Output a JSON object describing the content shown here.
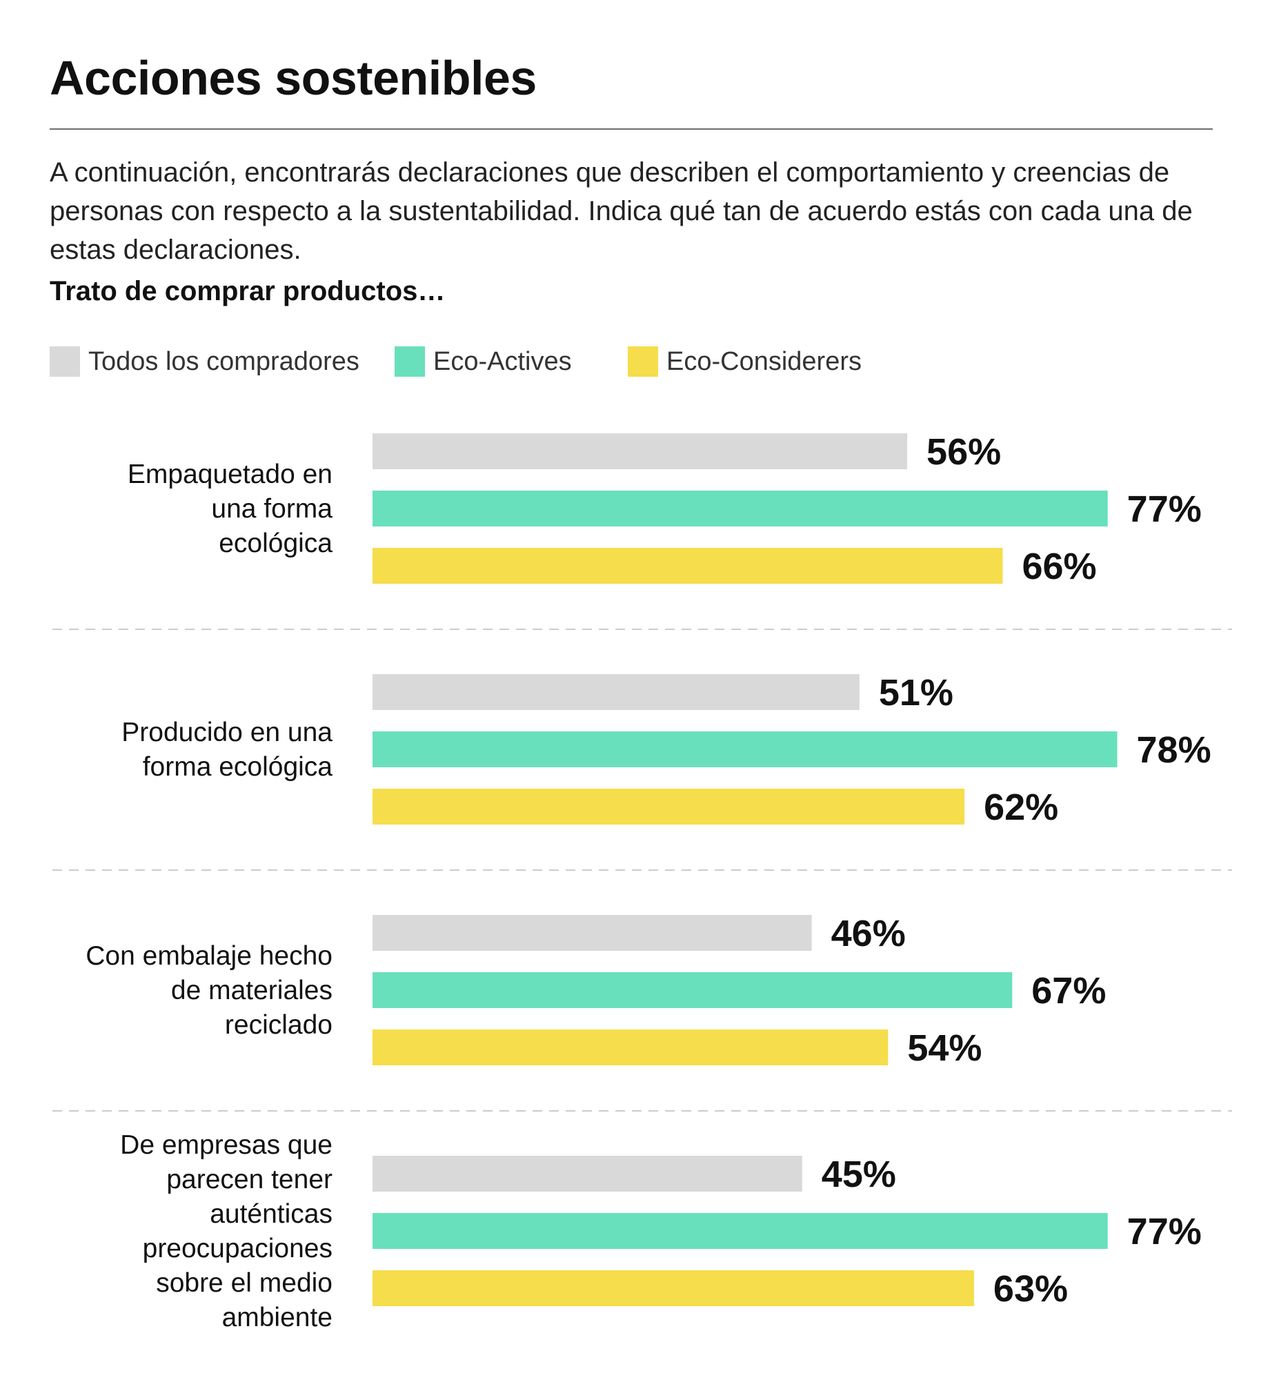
{
  "header": {
    "title": "Acciones sostenibles",
    "description": "A continuación, encontrarás declaraciones que describen el comportamiento y creencias de personas con respecto a la sustentabilidad. Indica qué tan de acuerdo estás con cada una de estas declaraciones.",
    "subtitle": "Trato de comprar productos…"
  },
  "colors": {
    "todos": "#d9d9d9",
    "eco_actives": "#68e0bc",
    "eco_considerers": "#f6dd4c",
    "divider": "#cccccc"
  },
  "chart_data": {
    "type": "bar",
    "orientation": "horizontal",
    "grouped": true,
    "categories": [
      "Empaquetado en una forma ecológica",
      "Producido en una forma ecológica",
      "Con embalaje hecho de materiales reciclado",
      "De empresas que parecen tener auténticas preocupaciones sobre el medio ambiente"
    ],
    "category_lines": [
      [
        "Empaquetado en",
        "una forma",
        "ecológica"
      ],
      [
        "Producido en una",
        "forma ecológica"
      ],
      [
        "Con embalaje hecho",
        "de materiales",
        "reciclado"
      ],
      [
        "De empresas que",
        "parecen tener",
        "auténticas",
        "preocupaciones",
        "sobre el medio",
        "ambiente"
      ]
    ],
    "series": [
      {
        "name": "Todos los compradores",
        "color": "#d9d9d9",
        "values": [
          56,
          51,
          46,
          45
        ]
      },
      {
        "name": "Eco-Actives",
        "color": "#68e0bc",
        "values": [
          77,
          78,
          67,
          77
        ]
      },
      {
        "name": "Eco-Considerers",
        "color": "#f6dd4c",
        "values": [
          66,
          62,
          54,
          63
        ]
      }
    ],
    "value_labels": [
      [
        "56%",
        "51%",
        "46%",
        "45%"
      ],
      [
        "77%",
        "78%",
        "67%",
        "77%"
      ],
      [
        "66%",
        "62%",
        "54%",
        "63%"
      ]
    ],
    "unit": "%",
    "legend_position": "top-left",
    "axis_visible": false,
    "grid": false,
    "dividers": "dashed"
  }
}
